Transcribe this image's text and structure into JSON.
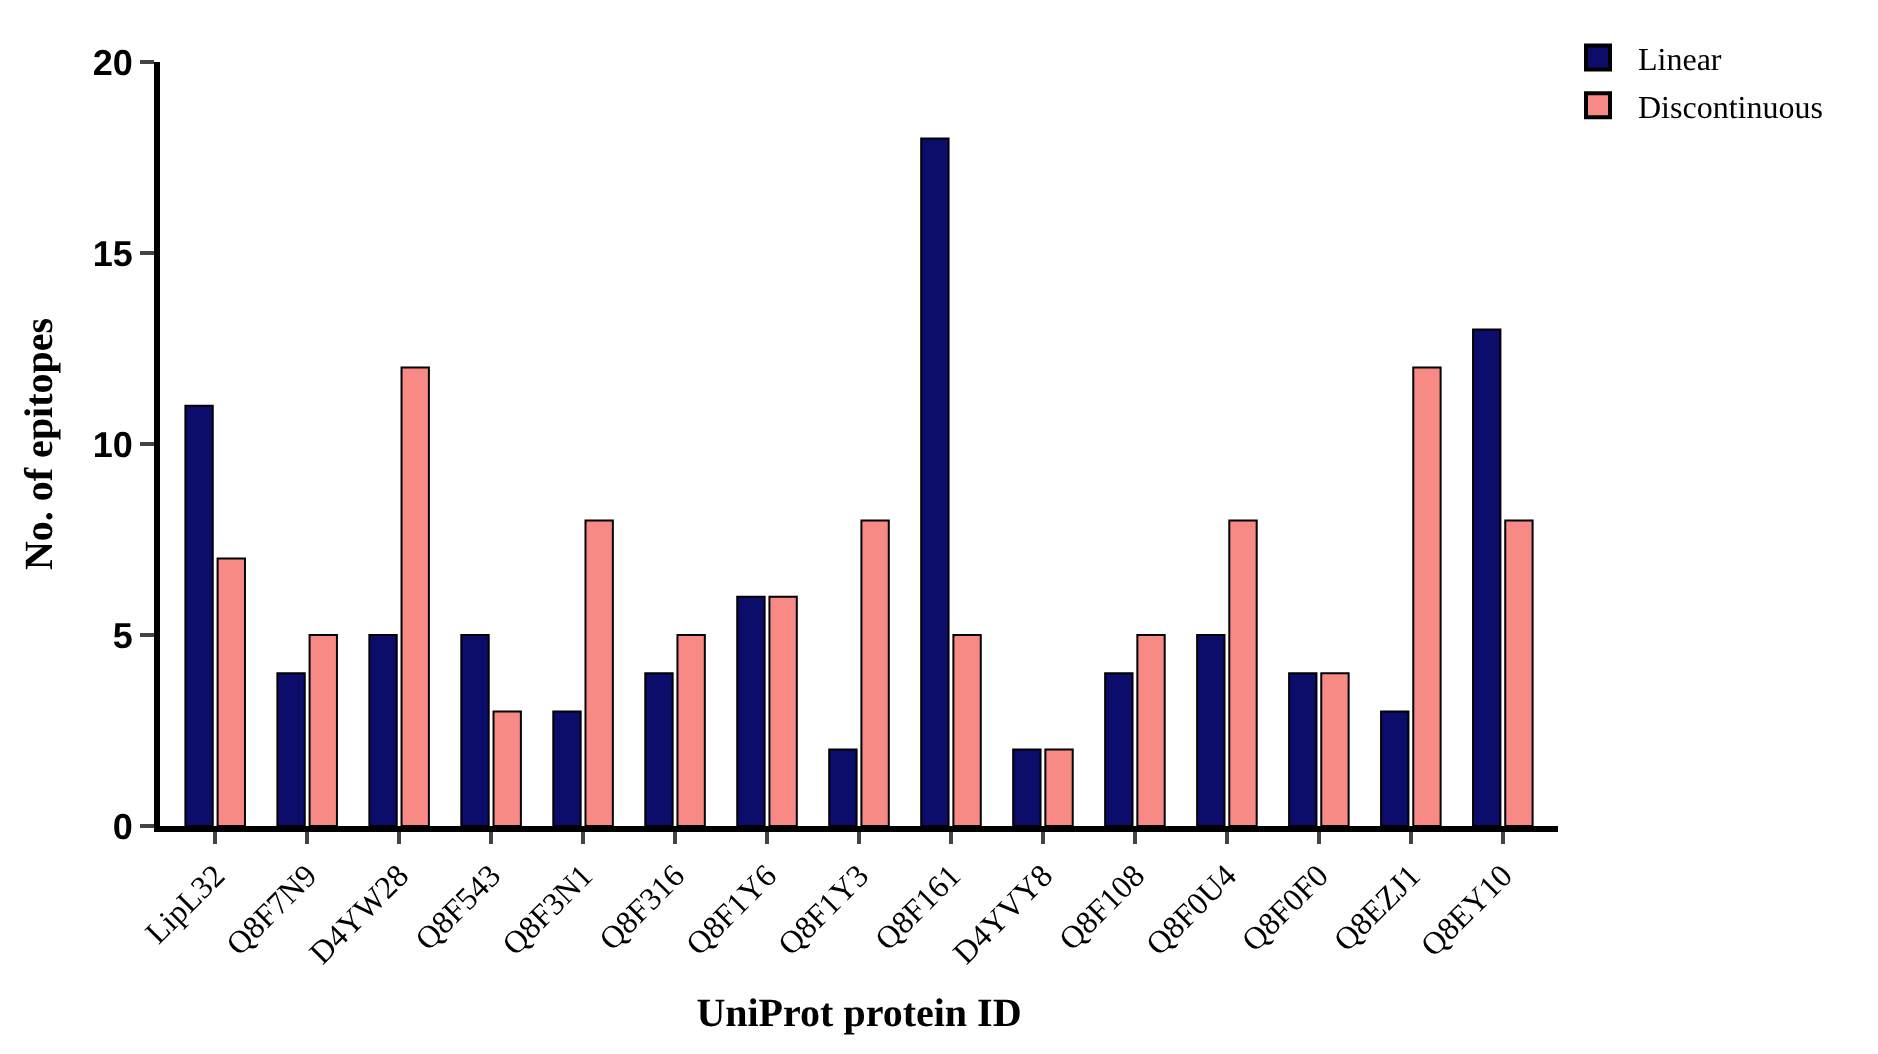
{
  "chart_data": {
    "type": "bar",
    "xlabel": "UniProt protein ID",
    "ylabel": "No. of epitopes",
    "categories": [
      "LipL32",
      "Q8F7N9",
      "D4YW28",
      "Q8F543",
      "Q8F3N1",
      "Q8F316",
      "Q8F1Y6",
      "Q8F1Y3",
      "Q8F161",
      "D4YVY8",
      "Q8F108",
      "Q8F0U4",
      "Q8F0F0",
      "Q8EZJ1",
      "Q8EY10"
    ],
    "series": [
      {
        "name": "Linear",
        "color": "#0c0c6a",
        "values": [
          11,
          4,
          5,
          5,
          3,
          4,
          6,
          2,
          18,
          2,
          4,
          5,
          4,
          3,
          13
        ]
      },
      {
        "name": "Discontinuous",
        "color": "#f88a86",
        "values": [
          7,
          5,
          12,
          3,
          8,
          5,
          6,
          8,
          5,
          2,
          5,
          8,
          4,
          12,
          8
        ]
      }
    ],
    "ylim": [
      0,
      20
    ],
    "yticks": [
      0,
      5,
      10,
      15,
      20
    ],
    "legend": "top right"
  }
}
